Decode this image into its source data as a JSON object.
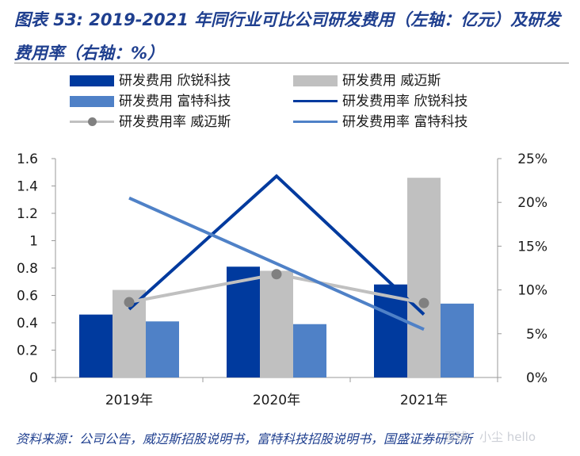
{
  "title": "图表 53:  2019-2021 年同行业可比公司研发费用（左轴：亿元）及研发费用率（右轴：%）",
  "source": "资料来源：公司公告，威迈斯招股说明书，富特科技招股说明书，国盛证券研究所",
  "watermark": "雪球：小尘 hello",
  "colors": {
    "xinrui_bar": "#003a9e",
    "weimaisi_bar": "#c0c0c0",
    "fute_bar": "#4f81c7",
    "xinrui_line": "#003a9e",
    "weimaisi_line": "#c0c0c0",
    "weimaisi_marker": "#808080",
    "fute_line": "#4f81c7"
  },
  "chart_data": {
    "type": "bar+line",
    "categories": [
      "2019年",
      "2020年",
      "2021年"
    ],
    "left_axis": {
      "ylim": [
        0,
        1.6
      ],
      "ticks": [
        "0",
        "0.2",
        "0.4",
        "0.6",
        "0.8",
        "1",
        "1.2",
        "1.4",
        "1.6"
      ]
    },
    "right_axis": {
      "ylim": [
        0,
        25
      ],
      "ticks": [
        "0%",
        "5%",
        "10%",
        "15%",
        "20%",
        "25%"
      ]
    },
    "bar_series": [
      {
        "name": "研发费用 欣锐科技",
        "values": [
          0.46,
          0.81,
          0.68
        ]
      },
      {
        "name": "研发费用 威迈斯",
        "values": [
          0.64,
          0.78,
          1.46
        ]
      },
      {
        "name": "研发费用 富特科技",
        "values": [
          0.41,
          0.39,
          0.54
        ]
      }
    ],
    "line_series": [
      {
        "name": "研发费用率 欣锐科技",
        "values": [
          7.8,
          23.0,
          7.2
        ]
      },
      {
        "name": "研发费用率 威迈斯",
        "values": [
          8.6,
          11.8,
          8.5
        ],
        "marker": "circle"
      },
      {
        "name": "研发费用率 富特科技",
        "values": [
          20.5,
          13.0,
          5.5
        ]
      }
    ],
    "grid": false,
    "legend_position": "top"
  }
}
